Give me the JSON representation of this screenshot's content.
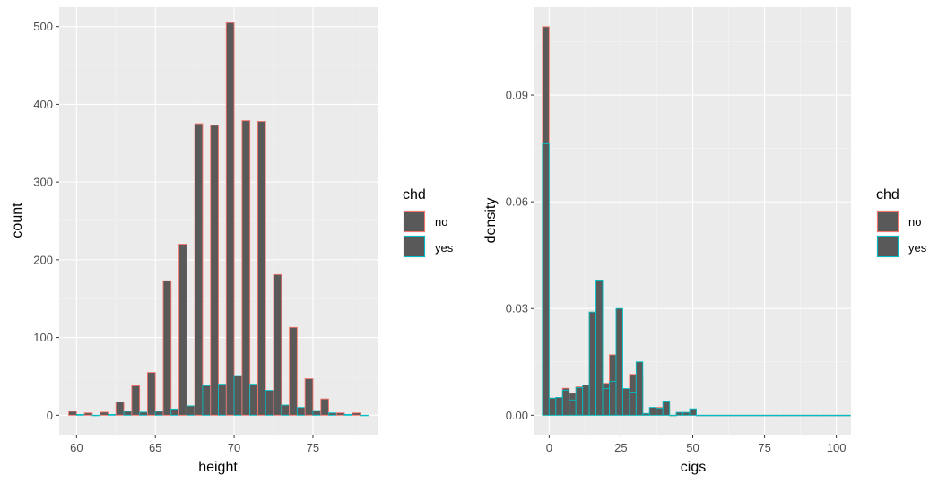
{
  "colors": {
    "panel": "#ebebeb",
    "grid_major": "#ffffff",
    "grid_minor": "#f5f5f5",
    "bar_fill": "#595959",
    "no_outline": "#F8766D",
    "yes_outline": "#00BFC4"
  },
  "chart_data": [
    {
      "type": "bar",
      "subtype": "histogram-dodged",
      "xlabel": "height",
      "ylabel": "count",
      "xlim": [
        58.9,
        79.1
      ],
      "ylim": [
        -25,
        525
      ],
      "x_ticks": [
        60,
        65,
        70,
        75
      ],
      "y_ticks": [
        0,
        100,
        200,
        300,
        400,
        500
      ],
      "x_tick_labels": [
        "60",
        "65",
        "70",
        "75"
      ],
      "y_tick_labels": [
        "0",
        "100",
        "200",
        "300",
        "400",
        "500"
      ],
      "bin_width": 1,
      "bins": [
        60,
        61,
        62,
        63,
        64,
        65,
        66,
        67,
        68,
        69,
        70,
        71,
        72,
        73,
        74,
        75,
        76,
        77,
        78
      ],
      "series": [
        {
          "name": "no",
          "values": [
            5,
            3,
            4,
            17,
            38,
            55,
            173,
            220,
            375,
            373,
            505,
            379,
            378,
            181,
            113,
            47,
            21,
            3,
            3
          ]
        },
        {
          "name": "yes",
          "values": [
            1,
            0,
            1,
            5,
            4,
            5,
            8,
            12,
            38,
            40,
            51,
            40,
            32,
            13,
            10,
            6,
            3,
            1,
            0
          ]
        }
      ],
      "legend": {
        "title": "chd",
        "entries": [
          "no",
          "yes"
        ],
        "position": "right"
      },
      "grid": true
    },
    {
      "type": "bar",
      "subtype": "histogram-density",
      "xlabel": "cigs",
      "ylabel": "density",
      "xlim": [
        -5.1,
        105.1
      ],
      "ylim": [
        -0.00546,
        0.1147
      ],
      "x_ticks": [
        0,
        25,
        50,
        75,
        100
      ],
      "y_ticks": [
        0,
        0.03,
        0.06,
        0.09
      ],
      "x_tick_labels": [
        "0",
        "25",
        "50",
        "75",
        "100"
      ],
      "y_tick_labels": [
        "0.00",
        "0.03",
        "0.06",
        "0.09"
      ],
      "bin_width": 2.33,
      "bin_start": -2.33,
      "series": [
        {
          "name": "no",
          "values": [
            0.1092,
            0.0048,
            0.005,
            0.0076,
            0.0062,
            0.008,
            0.008,
            0.029,
            0.021,
            0.009,
            0.017,
            0.0075,
            0.007,
            0.0115,
            0.011,
            0.0005,
            0.002,
            0.0022,
            0.0035,
            0,
            0.0008,
            0.0008,
            0.0012,
            0,
            0,
            0,
            0,
            0,
            0,
            0,
            0,
            0,
            0,
            0,
            0,
            0,
            0,
            0,
            0,
            0,
            0,
            0,
            0,
            0,
            0,
            0
          ]
        },
        {
          "name": "yes",
          "values": [
            0.0763,
            0.0048,
            0.005,
            0.007,
            0.0043,
            0.0078,
            0.0085,
            0.029,
            0.038,
            0.0075,
            0.0095,
            0.03,
            0.0075,
            0.0065,
            0.015,
            0.0005,
            0.0022,
            0.002,
            0.004,
            0,
            0.0008,
            0.0008,
            0.0018,
            0,
            0,
            0,
            0,
            0,
            0,
            0,
            0,
            0,
            0,
            0,
            0,
            0,
            0,
            0,
            0,
            0,
            0,
            0,
            0,
            0,
            0,
            0
          ]
        }
      ],
      "legend": {
        "title": "chd",
        "entries": [
          "no",
          "yes"
        ],
        "position": "right"
      },
      "grid": true
    }
  ]
}
